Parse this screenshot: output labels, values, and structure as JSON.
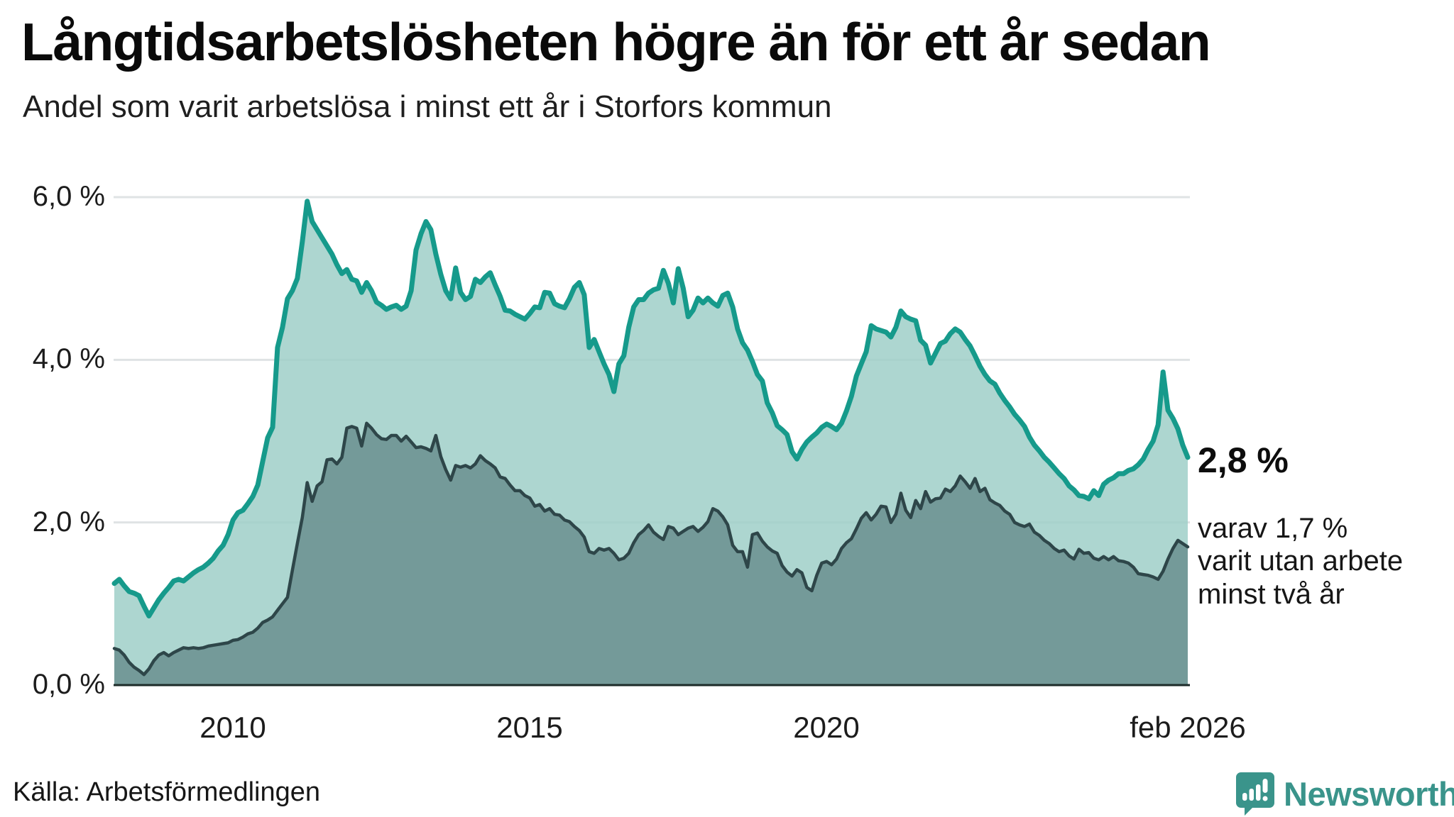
{
  "header": {
    "title": "Långtidsarbetslösheten högre än för ett år sedan",
    "subtitle": "Andel som varit arbetslösa i minst ett år i Storfors kommun"
  },
  "chart_data": {
    "type": "area",
    "title": "Långtidsarbetslösheten högre än för ett år sedan",
    "subtitle": "Andel som varit arbetslösa i minst ett år i Storfors kommun",
    "unit": "%",
    "x_start": "jan 2008",
    "x_end": "feb 2026",
    "frequency": "monthly",
    "ylim": [
      0,
      6.0
    ],
    "grid": "horizontal",
    "legend_position": "none",
    "y_ticks": [
      {
        "label": "6,0 %",
        "value": 6
      },
      {
        "label": "4,0 %",
        "value": 4
      },
      {
        "label": "2,0 %",
        "value": 2
      },
      {
        "label": "0,0 %",
        "value": 0
      }
    ],
    "x_ticks": [
      {
        "label": "2010",
        "month_index": 24
      },
      {
        "label": "2015",
        "month_index": 84
      },
      {
        "label": "2020",
        "month_index": 144
      },
      {
        "label": "feb 2026",
        "month_index": 217
      }
    ],
    "series": [
      {
        "name": "Andel arbetslösa minst ett år",
        "line_color": "#169a8b",
        "fill_color": "#9fcfc8",
        "fill_opacity": 0.85,
        "line_width": 7,
        "values": [
          1.25,
          1.3,
          1.22,
          1.15,
          1.13,
          1.1,
          0.97,
          0.85,
          0.95,
          1.05,
          1.13,
          1.2,
          1.28,
          1.3,
          1.28,
          1.33,
          1.38,
          1.42,
          1.45,
          1.5,
          1.56,
          1.65,
          1.72,
          1.85,
          2.03,
          2.12,
          2.15,
          2.23,
          2.32,
          2.46,
          2.75,
          3.04,
          3.17,
          4.15,
          4.4,
          4.75,
          4.85,
          5.0,
          5.45,
          5.95,
          5.7,
          5.6,
          5.5,
          5.4,
          5.3,
          5.17,
          5.06,
          5.11,
          4.99,
          4.97,
          4.83,
          4.95,
          4.85,
          4.71,
          4.67,
          4.62,
          4.65,
          4.67,
          4.62,
          4.66,
          4.85,
          5.35,
          5.55,
          5.7,
          5.6,
          5.3,
          5.05,
          4.85,
          4.75,
          5.13,
          4.83,
          4.74,
          4.78,
          4.99,
          4.95,
          5.02,
          5.07,
          4.92,
          4.78,
          4.61,
          4.6,
          4.56,
          4.53,
          4.5,
          4.57,
          4.65,
          4.64,
          4.83,
          4.82,
          4.69,
          4.66,
          4.64,
          4.75,
          4.89,
          4.95,
          4.8,
          4.15,
          4.25,
          4.1,
          3.95,
          3.82,
          3.61,
          3.95,
          4.05,
          4.4,
          4.65,
          4.74,
          4.74,
          4.82,
          4.86,
          4.88,
          5.1,
          4.94,
          4.7,
          5.12,
          4.88,
          4.53,
          4.61,
          4.76,
          4.7,
          4.76,
          4.7,
          4.66,
          4.79,
          4.82,
          4.65,
          4.38,
          4.21,
          4.12,
          3.98,
          3.82,
          3.74,
          3.47,
          3.35,
          3.19,
          3.14,
          3.08,
          2.87,
          2.78,
          2.9,
          2.99,
          3.05,
          3.1,
          3.17,
          3.21,
          3.18,
          3.14,
          3.22,
          3.37,
          3.55,
          3.8,
          3.95,
          4.1,
          4.42,
          4.38,
          4.36,
          4.34,
          4.28,
          4.4,
          4.6,
          4.53,
          4.5,
          4.48,
          4.24,
          4.18,
          3.96,
          4.08,
          4.2,
          4.23,
          4.32,
          4.38,
          4.34,
          4.25,
          4.17,
          4.05,
          3.92,
          3.82,
          3.74,
          3.7,
          3.59,
          3.5,
          3.42,
          3.33,
          3.26,
          3.18,
          3.05,
          2.95,
          2.88,
          2.8,
          2.74,
          2.67,
          2.6,
          2.54,
          2.45,
          2.4,
          2.33,
          2.32,
          2.29,
          2.39,
          2.33,
          2.47,
          2.52,
          2.55,
          2.6,
          2.6,
          2.64,
          2.66,
          2.71,
          2.78,
          2.9,
          3.0,
          3.2,
          3.85,
          3.38,
          3.28,
          3.15,
          2.95,
          2.8
        ]
      },
      {
        "name": "Andel utan arbete minst två år",
        "line_color": "#2e4649",
        "fill_color": "#6e9492",
        "fill_opacity": 0.9,
        "line_width": 4.5,
        "values": [
          0.45,
          0.43,
          0.37,
          0.28,
          0.22,
          0.18,
          0.13,
          0.2,
          0.3,
          0.37,
          0.4,
          0.36,
          0.4,
          0.43,
          0.46,
          0.45,
          0.46,
          0.45,
          0.46,
          0.48,
          0.49,
          0.5,
          0.51,
          0.52,
          0.55,
          0.56,
          0.59,
          0.63,
          0.65,
          0.7,
          0.77,
          0.8,
          0.84,
          0.92,
          1.0,
          1.08,
          1.41,
          1.74,
          2.06,
          2.49,
          2.26,
          2.45,
          2.5,
          2.77,
          2.78,
          2.72,
          2.8,
          3.16,
          3.18,
          3.16,
          2.94,
          3.22,
          3.16,
          3.08,
          3.03,
          3.02,
          3.07,
          3.07,
          3.0,
          3.06,
          2.99,
          2.92,
          2.93,
          2.91,
          2.88,
          3.07,
          2.81,
          2.65,
          2.52,
          2.7,
          2.68,
          2.7,
          2.67,
          2.72,
          2.82,
          2.76,
          2.72,
          2.67,
          2.56,
          2.54,
          2.46,
          2.39,
          2.39,
          2.33,
          2.3,
          2.2,
          2.22,
          2.14,
          2.17,
          2.1,
          2.09,
          2.03,
          2.01,
          1.95,
          1.9,
          1.82,
          1.64,
          1.62,
          1.68,
          1.66,
          1.68,
          1.62,
          1.54,
          1.56,
          1.62,
          1.75,
          1.85,
          1.9,
          1.97,
          1.88,
          1.83,
          1.79,
          1.95,
          1.93,
          1.85,
          1.89,
          1.93,
          1.95,
          1.89,
          1.94,
          2.01,
          2.17,
          2.14,
          2.07,
          1.97,
          1.72,
          1.64,
          1.64,
          1.45,
          1.85,
          1.87,
          1.77,
          1.7,
          1.65,
          1.62,
          1.47,
          1.39,
          1.34,
          1.42,
          1.38,
          1.2,
          1.16,
          1.35,
          1.5,
          1.52,
          1.48,
          1.55,
          1.68,
          1.75,
          1.8,
          1.92,
          2.05,
          2.12,
          2.03,
          2.1,
          2.2,
          2.19,
          2.0,
          2.1,
          2.36,
          2.15,
          2.06,
          2.27,
          2.17,
          2.38,
          2.25,
          2.29,
          2.3,
          2.41,
          2.38,
          2.45,
          2.57,
          2.5,
          2.42,
          2.54,
          2.38,
          2.42,
          2.28,
          2.24,
          2.21,
          2.14,
          2.1,
          2.0,
          1.97,
          1.95,
          1.98,
          1.88,
          1.84,
          1.78,
          1.74,
          1.68,
          1.64,
          1.66,
          1.59,
          1.55,
          1.67,
          1.62,
          1.63,
          1.56,
          1.54,
          1.58,
          1.54,
          1.58,
          1.53,
          1.52,
          1.5,
          1.45,
          1.37,
          1.36,
          1.35,
          1.33,
          1.3,
          1.4,
          1.55,
          1.68,
          1.78,
          1.74,
          1.7
        ]
      }
    ],
    "annotations": {
      "end_value_label": "2,8 %",
      "end_note_lines": [
        "varav 1,7 %",
        "varit utan arbete",
        "minst två år"
      ]
    },
    "colors": {
      "teal_line": "#169a8b",
      "teal_fill": "#a9d4cd",
      "dark_line": "#2e4649",
      "dark_fill": "#7a9e9b",
      "gridline": "#dfe3e4",
      "baseline": "#1d2b29"
    }
  },
  "footer": {
    "source": "Källa: Arbetsförmedlingen",
    "logo_text": "Newsworthy",
    "logo_color": "#3a948b"
  }
}
